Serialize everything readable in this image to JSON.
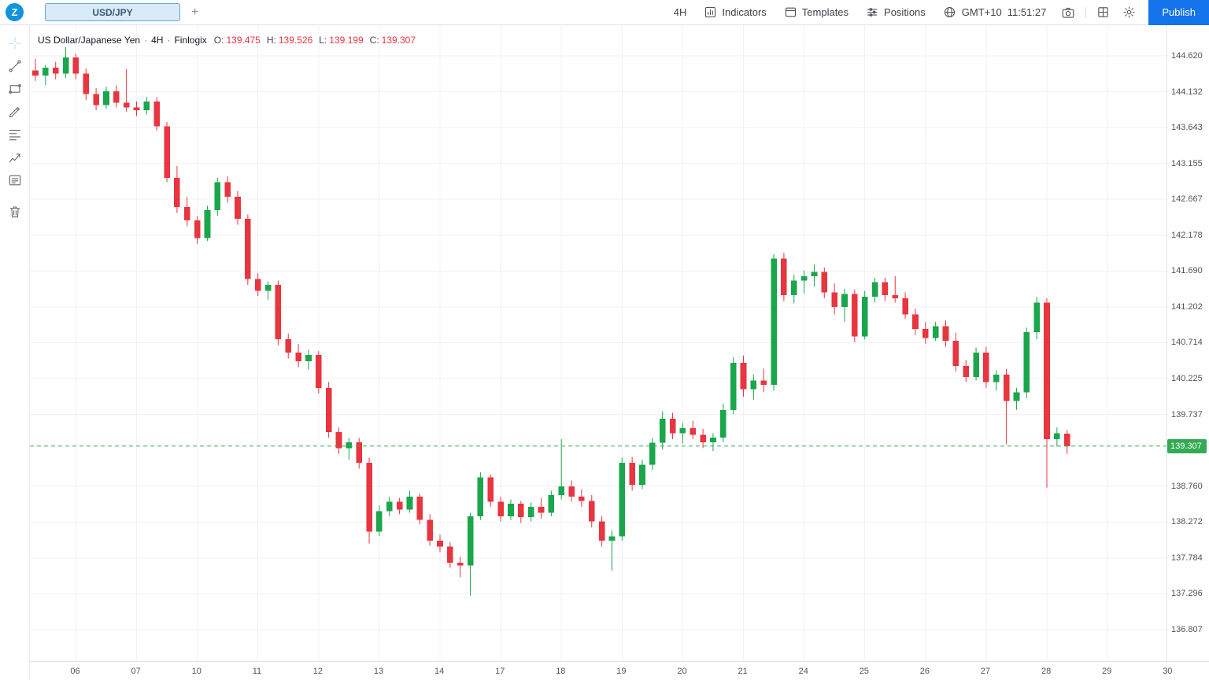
{
  "app": {
    "logo_letter": "Z",
    "tab": {
      "label": "USD/JPY"
    },
    "add_tab_label": "+",
    "toolbar": {
      "timeframe": "4H",
      "indicators_label": "Indicators",
      "templates_label": "Templates",
      "positions_label": "Positions",
      "timezone": "GMT+10",
      "clock": "11:51:27",
      "publish_label": "Publish"
    }
  },
  "legend": {
    "title": "US Dollar/Japanese Yen",
    "sep": "·",
    "timeframe": "4H",
    "source": "Finlogix",
    "ohlc": {
      "o_label": "O:",
      "o": "139.475",
      "h_label": "H:",
      "h": "139.526",
      "l_label": "L:",
      "l": "139.199",
      "c_label": "C:",
      "c": "139.307"
    }
  },
  "chart_data": {
    "type": "candlestick",
    "symbol": "USD/JPY",
    "timeframe": "4H",
    "up_color": "#1aa64b",
    "down_color": "#e8353f",
    "price_line_color": "#33ab55",
    "grid": true,
    "current_price": 139.307,
    "y_axis_ticks": [
      144.62,
      144.132,
      143.643,
      143.155,
      142.667,
      142.178,
      141.69,
      141.202,
      140.714,
      140.225,
      139.737,
      138.76,
      138.272,
      137.784,
      137.296,
      136.807
    ],
    "x_axis_labels": [
      {
        "index": 4,
        "label": "06"
      },
      {
        "index": 10,
        "label": "07"
      },
      {
        "index": 16,
        "label": "10"
      },
      {
        "index": 22,
        "label": "11"
      },
      {
        "index": 28,
        "label": "12"
      },
      {
        "index": 34,
        "label": "13"
      },
      {
        "index": 40,
        "label": "14"
      },
      {
        "index": 46,
        "label": "17"
      },
      {
        "index": 52,
        "label": "18"
      },
      {
        "index": 58,
        "label": "19"
      },
      {
        "index": 64,
        "label": "20"
      },
      {
        "index": 70,
        "label": "21"
      },
      {
        "index": 76,
        "label": "24"
      },
      {
        "index": 82,
        "label": "25"
      },
      {
        "index": 88,
        "label": "26"
      },
      {
        "index": 94,
        "label": "27"
      },
      {
        "index": 100,
        "label": "28"
      },
      {
        "index": 106,
        "label": "29"
      },
      {
        "index": 112,
        "label": "30"
      }
    ],
    "candles_ohlc": [
      [
        144.42,
        144.58,
        144.28,
        144.35
      ],
      [
        144.35,
        144.5,
        144.22,
        144.46
      ],
      [
        144.46,
        144.54,
        144.3,
        144.38
      ],
      [
        144.38,
        144.74,
        144.32,
        144.6
      ],
      [
        144.6,
        144.65,
        144.3,
        144.38
      ],
      [
        144.38,
        144.45,
        144.02,
        144.1
      ],
      [
        144.1,
        144.18,
        143.88,
        143.95
      ],
      [
        143.95,
        144.2,
        143.9,
        144.14
      ],
      [
        144.14,
        144.22,
        143.92,
        143.98
      ],
      [
        143.98,
        144.44,
        143.86,
        143.92
      ],
      [
        143.92,
        144.0,
        143.8,
        143.88
      ],
      [
        143.88,
        144.06,
        143.82,
        144.0
      ],
      [
        144.0,
        144.06,
        143.6,
        143.66
      ],
      [
        143.66,
        143.72,
        142.9,
        142.96
      ],
      [
        142.96,
        143.12,
        142.48,
        142.56
      ],
      [
        142.56,
        142.7,
        142.3,
        142.38
      ],
      [
        142.38,
        142.44,
        142.06,
        142.14
      ],
      [
        142.14,
        142.58,
        142.1,
        142.52
      ],
      [
        142.52,
        142.96,
        142.44,
        142.9
      ],
      [
        142.9,
        142.98,
        142.62,
        142.7
      ],
      [
        142.7,
        142.78,
        142.32,
        142.4
      ],
      [
        142.4,
        142.46,
        141.5,
        141.58
      ],
      [
        141.58,
        141.66,
        141.35,
        141.42
      ],
      [
        141.42,
        141.55,
        141.3,
        141.5
      ],
      [
        141.5,
        141.56,
        140.68,
        140.76
      ],
      [
        140.76,
        140.84,
        140.5,
        140.58
      ],
      [
        140.58,
        140.7,
        140.38,
        140.46
      ],
      [
        140.46,
        140.62,
        140.35,
        140.55
      ],
      [
        140.55,
        140.6,
        140.02,
        140.1
      ],
      [
        140.1,
        140.18,
        139.42,
        139.5
      ],
      [
        139.5,
        139.56,
        139.2,
        139.28
      ],
      [
        139.28,
        139.42,
        139.12,
        139.36
      ],
      [
        139.36,
        139.42,
        139.0,
        139.08
      ],
      [
        139.08,
        139.15,
        137.98,
        138.14
      ],
      [
        138.14,
        138.5,
        138.08,
        138.42
      ],
      [
        138.42,
        138.62,
        138.35,
        138.55
      ],
      [
        138.55,
        138.6,
        138.38,
        138.44
      ],
      [
        138.44,
        138.7,
        138.4,
        138.62
      ],
      [
        138.62,
        138.66,
        138.24,
        138.3
      ],
      [
        138.3,
        138.38,
        137.95,
        138.02
      ],
      [
        138.02,
        138.1,
        137.86,
        137.94
      ],
      [
        137.94,
        138.0,
        137.65,
        137.72
      ],
      [
        137.72,
        137.8,
        137.52,
        137.68
      ],
      [
        137.68,
        138.4,
        137.27,
        138.35
      ],
      [
        138.35,
        138.95,
        138.3,
        138.88
      ],
      [
        138.88,
        138.92,
        138.48,
        138.55
      ],
      [
        138.55,
        138.62,
        138.28,
        138.35
      ],
      [
        138.35,
        138.58,
        138.3,
        138.52
      ],
      [
        138.52,
        138.56,
        138.26,
        138.34
      ],
      [
        138.34,
        138.54,
        138.28,
        138.48
      ],
      [
        138.48,
        138.6,
        138.32,
        138.4
      ],
      [
        138.4,
        138.7,
        138.35,
        138.64
      ],
      [
        138.64,
        139.4,
        138.58,
        138.76
      ],
      [
        138.76,
        138.84,
        138.55,
        138.62
      ],
      [
        138.62,
        138.72,
        138.48,
        138.56
      ],
      [
        138.56,
        138.64,
        138.2,
        138.28
      ],
      [
        138.28,
        138.35,
        137.94,
        138.02
      ],
      [
        138.02,
        138.16,
        137.61,
        138.08
      ],
      [
        138.08,
        139.15,
        138.02,
        139.08
      ],
      [
        139.08,
        139.16,
        138.7,
        138.78
      ],
      [
        138.78,
        139.12,
        138.72,
        139.05
      ],
      [
        139.05,
        139.42,
        138.98,
        139.35
      ],
      [
        139.35,
        139.78,
        139.26,
        139.68
      ],
      [
        139.68,
        139.76,
        139.4,
        139.48
      ],
      [
        139.48,
        139.62,
        139.34,
        139.55
      ],
      [
        139.55,
        139.65,
        139.4,
        139.46
      ],
      [
        139.46,
        139.54,
        139.28,
        139.36
      ],
      [
        139.36,
        139.48,
        139.24,
        139.42
      ],
      [
        139.42,
        139.88,
        139.36,
        139.8
      ],
      [
        139.8,
        140.52,
        139.74,
        140.44
      ],
      [
        140.44,
        140.54,
        139.98,
        140.08
      ],
      [
        140.08,
        140.28,
        139.94,
        140.2
      ],
      [
        140.2,
        140.36,
        140.04,
        140.14
      ],
      [
        140.14,
        141.92,
        140.06,
        141.86
      ],
      [
        141.86,
        141.94,
        141.28,
        141.36
      ],
      [
        141.36,
        141.64,
        141.25,
        141.56
      ],
      [
        141.56,
        141.7,
        141.38,
        141.62
      ],
      [
        141.62,
        141.78,
        141.48,
        141.68
      ],
      [
        141.68,
        141.74,
        141.32,
        141.4
      ],
      [
        141.4,
        141.52,
        141.1,
        141.2
      ],
      [
        141.2,
        141.45,
        141.0,
        141.38
      ],
      [
        141.38,
        141.44,
        140.72,
        140.8
      ],
      [
        140.8,
        141.42,
        140.76,
        141.34
      ],
      [
        141.34,
        141.6,
        141.26,
        141.54
      ],
      [
        141.54,
        141.6,
        141.28,
        141.36
      ],
      [
        141.36,
        141.62,
        141.26,
        141.32
      ],
      [
        141.32,
        141.4,
        141.04,
        141.1
      ],
      [
        141.1,
        141.18,
        140.82,
        140.9
      ],
      [
        140.9,
        141.0,
        140.7,
        140.78
      ],
      [
        140.78,
        141.0,
        140.74,
        140.94
      ],
      [
        140.94,
        141.02,
        140.66,
        140.74
      ],
      [
        140.74,
        140.85,
        140.32,
        140.4
      ],
      [
        140.4,
        140.48,
        140.18,
        140.25
      ],
      [
        140.25,
        140.65,
        140.2,
        140.58
      ],
      [
        140.58,
        140.66,
        140.1,
        140.18
      ],
      [
        140.18,
        140.34,
        140.06,
        140.28
      ],
      [
        140.28,
        140.36,
        139.33,
        139.92
      ],
      [
        139.92,
        140.1,
        139.8,
        140.04
      ],
      [
        140.04,
        140.92,
        139.96,
        140.86
      ],
      [
        140.86,
        141.34,
        140.76,
        141.26
      ],
      [
        141.26,
        141.32,
        138.74,
        139.4
      ],
      [
        139.4,
        139.56,
        139.3,
        139.48
      ],
      [
        139.475,
        139.526,
        139.199,
        139.307
      ]
    ]
  }
}
